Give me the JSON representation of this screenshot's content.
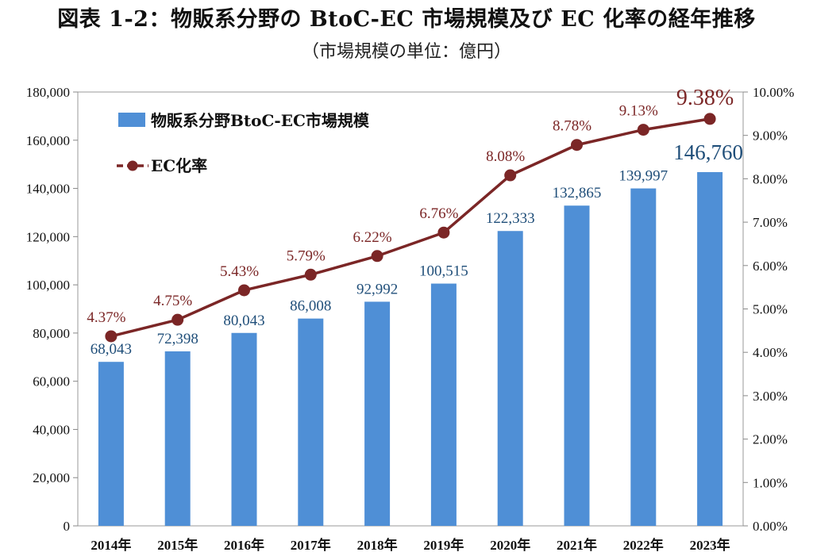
{
  "title": "図表 1-2：物販系分野の BtoC-EC 市場規模及び EC 化率の経年推移",
  "subtitle": "（市場規模の単位：億円）",
  "chart_data": {
    "type": "bar",
    "categories": [
      "2014年",
      "2015年",
      "2016年",
      "2017年",
      "2018年",
      "2019年",
      "2020年",
      "2021年",
      "2022年",
      "2023年"
    ],
    "series": [
      {
        "name": "物販系分野BtoC-EC市場規模",
        "type": "bar",
        "axis": "left",
        "values": [
          68043,
          72398,
          80043,
          86008,
          92992,
          100515,
          122333,
          132865,
          139997,
          146760
        ],
        "labels": [
          "68,043",
          "72,398",
          "80,043",
          "86,008",
          "92,992",
          "100,515",
          "122,333",
          "132,865",
          "139,997",
          "146,760"
        ],
        "color": "#4f8fd6"
      },
      {
        "name": "EC化率",
        "type": "line",
        "axis": "right",
        "values": [
          4.37,
          4.75,
          5.43,
          5.79,
          6.22,
          6.76,
          8.08,
          8.78,
          9.13,
          9.38
        ],
        "labels": [
          "4.37%",
          "4.75%",
          "5.43%",
          "5.79%",
          "6.22%",
          "6.76%",
          "8.08%",
          "8.78%",
          "9.13%",
          "9.38%"
        ],
        "color": "#7b2626"
      }
    ],
    "y_left": {
      "range": [
        0,
        180000
      ],
      "ticks": [
        "0",
        "20,000",
        "40,000",
        "60,000",
        "80,000",
        "100,000",
        "120,000",
        "140,000",
        "160,000",
        "180,000"
      ]
    },
    "y_right": {
      "range": [
        0,
        10
      ],
      "ticks": [
        "0.00%",
        "1.00%",
        "2.00%",
        "3.00%",
        "4.00%",
        "5.00%",
        "6.00%",
        "7.00%",
        "8.00%",
        "9.00%",
        "10.00%"
      ]
    },
    "legend": {
      "position": "top-left"
    },
    "grid": false
  }
}
